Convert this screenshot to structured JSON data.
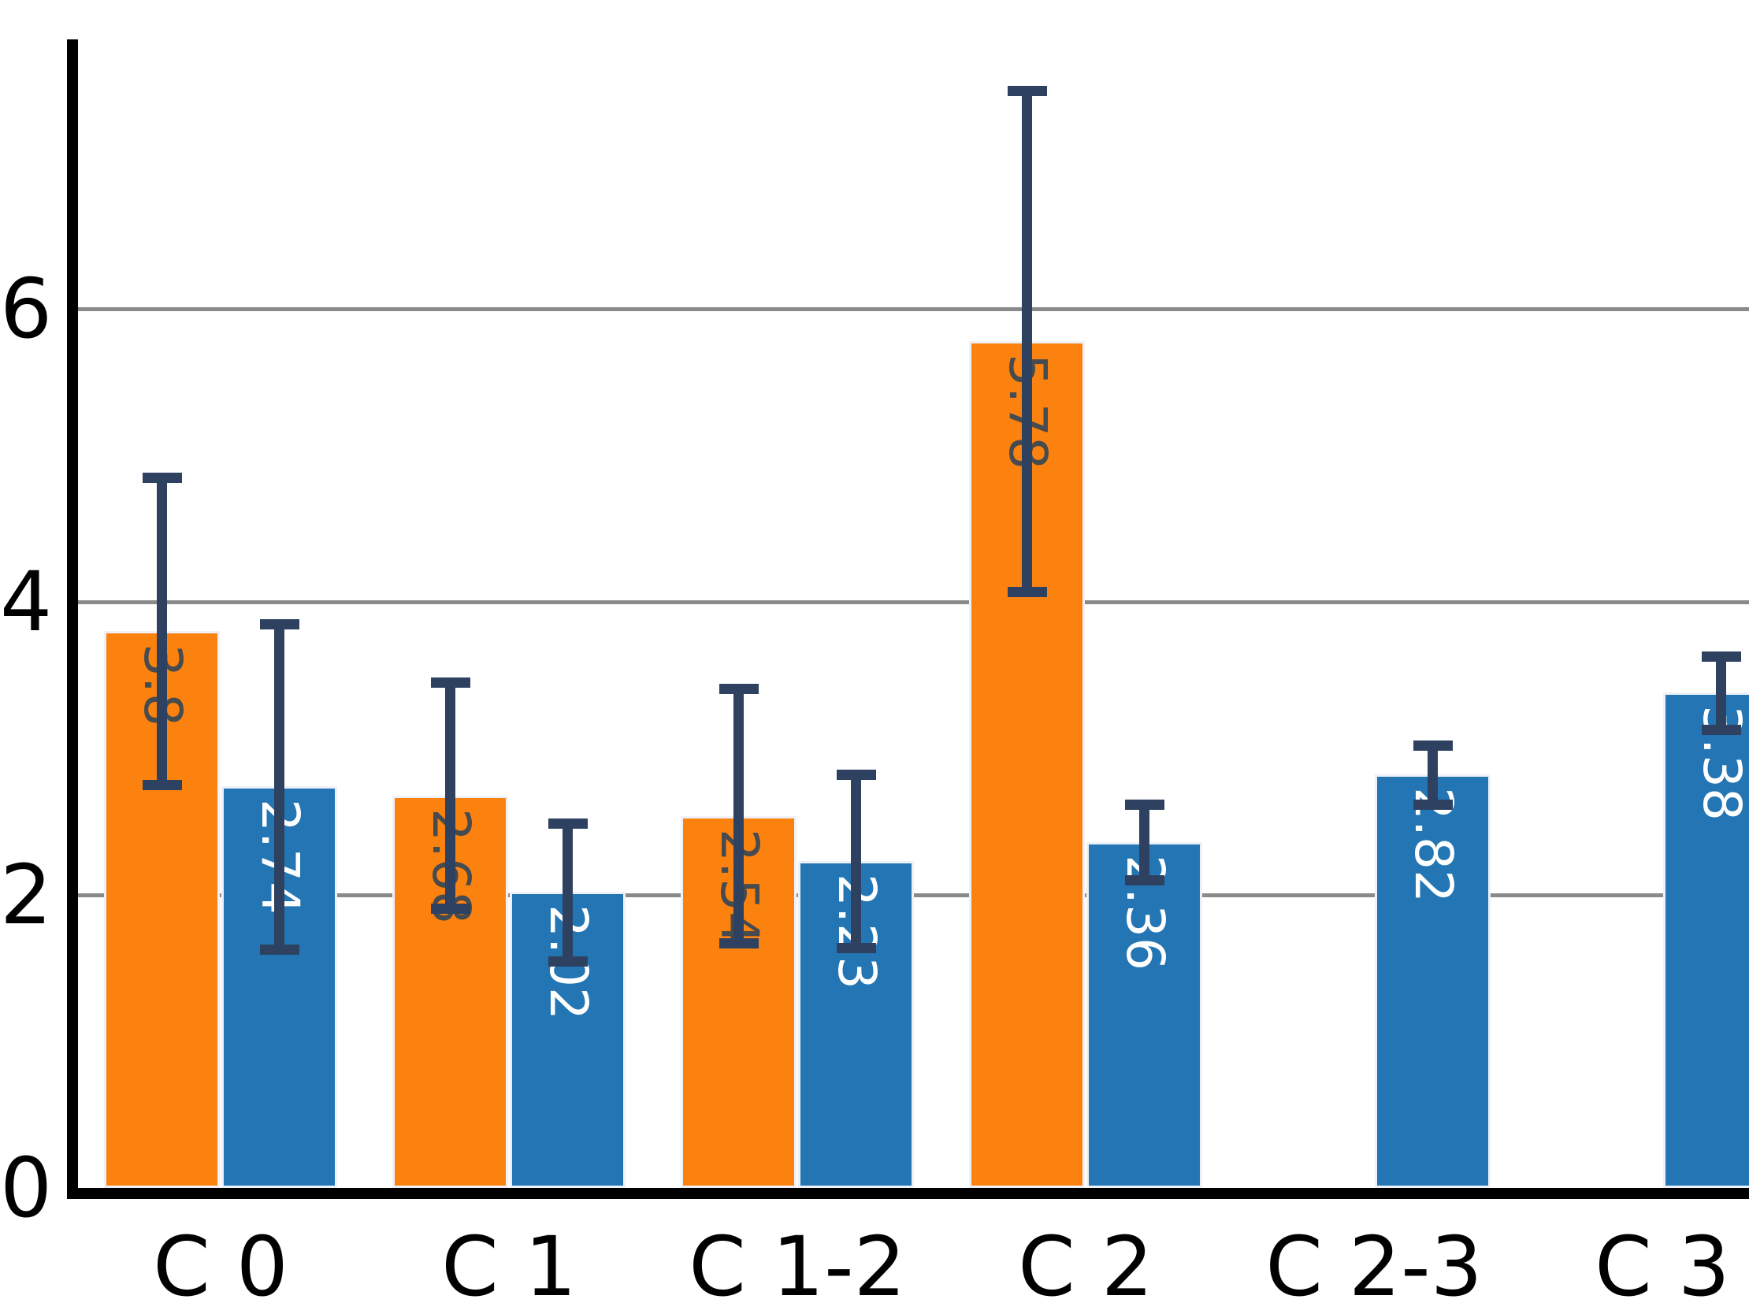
{
  "chart_data": {
    "type": "bar",
    "title": "",
    "categories": [
      "C 0",
      "C 1",
      "C 1-2",
      "C 2",
      "C 2-3",
      "C 3"
    ],
    "series": [
      {
        "name": "orange",
        "color": "#fc820f",
        "values": [
          3.8,
          2.68,
          2.54,
          5.78,
          null,
          null
        ],
        "labels": [
          "3.8",
          "2.68",
          "2.54",
          "5.78",
          null,
          null
        ],
        "errors": [
          1.05,
          0.77,
          0.87,
          1.71,
          null,
          null
        ],
        "label_text_color": "#454b4f"
      },
      {
        "name": "blue",
        "color": "#2376b3",
        "values": [
          2.74,
          2.02,
          2.23,
          2.36,
          2.82,
          3.38
        ],
        "labels": [
          "2.74",
          "2.02",
          "2.23",
          "2.36",
          "2.82",
          "3.38"
        ],
        "errors": [
          1.11,
          0.47,
          0.59,
          0.26,
          0.2,
          0.25
        ],
        "label_text_color": "#ffffff"
      }
    ],
    "y_ticks": [
      {
        "label": "0",
        "value": 0
      },
      {
        "label": "2",
        "value": 2
      },
      {
        "label": "4",
        "value": 4
      },
      {
        "label": "6",
        "value": 6
      }
    ],
    "ylim": [
      0,
      7.9
    ],
    "grid": "horizontal",
    "gridline_values": [
      2,
      4,
      6
    ],
    "legend": "none",
    "error_bar_color": "#2e4161",
    "gridline_color": "#8a8a8a",
    "axis_color": "#000000"
  }
}
